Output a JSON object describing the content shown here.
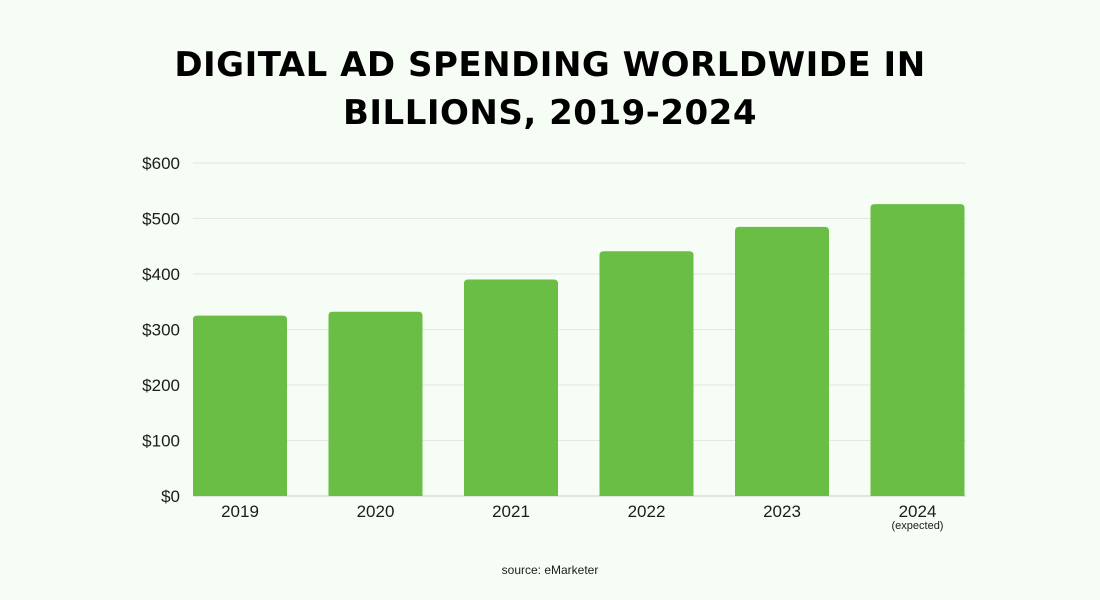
{
  "chart_data": {
    "type": "bar",
    "title_lines": [
      "DIGITAL AD SPENDING WORLDWIDE IN",
      "BILLIONS, 2019-2024"
    ],
    "categories": [
      "2019",
      "2020",
      "2021",
      "2022",
      "2023",
      "2024"
    ],
    "category_notes": [
      "",
      "",
      "",
      "",
      "",
      "(expected)"
    ],
    "values": [
      325,
      332,
      390,
      441,
      485,
      526
    ],
    "y_ticks": [
      "$0",
      "$100",
      "$200",
      "$300",
      "$400",
      "$500",
      "$600"
    ],
    "ylim": [
      0,
      600
    ],
    "xlabel": "",
    "ylabel": "",
    "grid": true,
    "legend": "none",
    "bar_color": "#6abd45",
    "source": "source: eMarketer"
  }
}
